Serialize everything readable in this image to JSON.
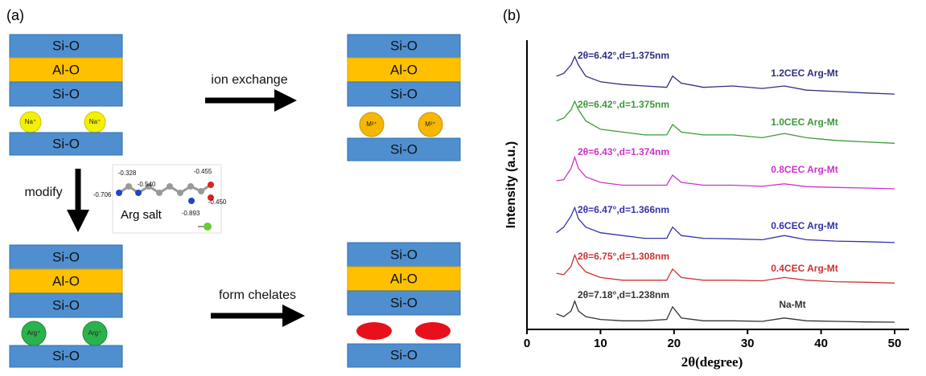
{
  "panel_a": {
    "label": "(a)",
    "layers": {
      "si_o": "Si-O",
      "al_o": "Al-O"
    },
    "ions": {
      "na": "Na⁺",
      "m": "M²⁺",
      "arg": "Arg⁺"
    },
    "steps": {
      "ion_exchange": "ion exchange",
      "modify": "modify",
      "form_chelates": "form chelates"
    },
    "molecule": {
      "name": "Arg salt",
      "charges": [
        "-0.328",
        "-0.540",
        "-0.706",
        "-0.455",
        "-0.450",
        "-0.893"
      ]
    }
  },
  "panel_b": {
    "label": "(b)"
  },
  "chart_data": {
    "type": "line",
    "x_label": "2θ(degree)",
    "y_label": "Intensity (a.u.)",
    "x": [
      4,
      5,
      6,
      6.5,
      7,
      8,
      10,
      13,
      16,
      19,
      19.8,
      21,
      24,
      28,
      32,
      35,
      38,
      42,
      46,
      50
    ],
    "xlim": [
      0,
      50
    ],
    "xticks": [
      0,
      10,
      20,
      30,
      40,
      50
    ],
    "ylim": [
      0,
      100
    ],
    "series": [
      {
        "name": "1.2CEC Arg-Mt",
        "color": "#2e2e80",
        "values": [
          90,
          91,
          94,
          97,
          94,
          90,
          88,
          87,
          86.5,
          86,
          90,
          87.5,
          86,
          86.5,
          85.6,
          86.5,
          85,
          84.5,
          84,
          83.6
        ]
      },
      {
        "name": "1.0CEC Arg-Mt",
        "color": "#3a9a3a",
        "values": [
          74,
          75,
          78,
          81,
          78,
          74,
          71,
          70,
          69,
          69,
          72.7,
          70,
          69,
          69,
          68,
          69.5,
          68,
          67,
          66.5,
          66
        ]
      },
      {
        "name": "0.8CEC Arg-Mt",
        "color": "#cc33cc",
        "values": [
          52.6,
          53,
          57,
          61,
          57,
          54,
          52,
          51,
          51,
          51,
          54.6,
          52,
          51,
          51,
          50.6,
          51.5,
          50.5,
          50.2,
          50,
          49.7
        ]
      },
      {
        "name": "0.6CEC Arg-Mt",
        "color": "#3333aa",
        "values": [
          34,
          36,
          40,
          43,
          39,
          36,
          34,
          33,
          32,
          32,
          36,
          33,
          32,
          31.8,
          31.5,
          33,
          31.5,
          31,
          30.8,
          30.5
        ]
      },
      {
        "name": "0.4CEC Arg-Mt",
        "color": "#cc3333",
        "values": [
          19.5,
          19,
          22,
          26,
          23,
          20,
          18,
          17,
          17,
          17,
          21,
          18,
          17,
          17,
          16.8,
          18,
          17,
          16.5,
          16.3,
          16
        ]
      },
      {
        "name": "Na-Mt",
        "color": "#333333",
        "values": [
          5,
          4,
          6,
          9.5,
          6,
          4,
          3,
          2.5,
          2.5,
          3,
          7.5,
          3.5,
          2.5,
          2.5,
          2.3,
          3.5,
          2.5,
          2.3,
          2.1,
          2
        ]
      }
    ],
    "annotations": [
      "2θ=6.42°,d=1.375nm",
      "2θ=6.42°,d=1.375nm",
      "2θ=6.43°,d=1.374nm",
      "2θ=6.47°,d=1.366nm",
      "2θ=6.75°,d=1.308nm",
      "2θ=7.18°,d=1.238nm"
    ]
  }
}
